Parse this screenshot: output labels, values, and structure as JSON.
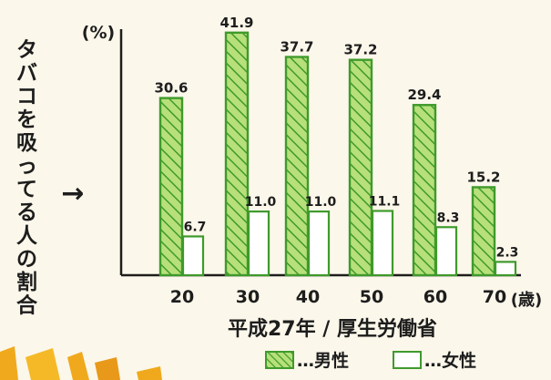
{
  "chart_data": {
    "type": "bar",
    "title": "",
    "side_label": "タバコを吸ってる人の割合",
    "arrow": "→",
    "unit_y": "(%)",
    "unit_x": "(歳)",
    "source": "平成27年 / 厚生労働省",
    "categories": [
      "20",
      "30",
      "40",
      "50",
      "60",
      "70"
    ],
    "series": [
      {
        "name": "男性",
        "values": [
          30.6,
          41.9,
          37.7,
          37.2,
          29.4,
          15.2
        ],
        "labels": [
          "30.6",
          "41.9",
          "37.7",
          "37.2",
          "29.4",
          "15.2"
        ],
        "style": "hatched",
        "color": "#3f9a2c",
        "fill": "#b7e07a"
      },
      {
        "name": "女性",
        "values": [
          6.7,
          11.0,
          11.0,
          11.1,
          8.3,
          2.3
        ],
        "labels": [
          "6.7",
          "11.0",
          "11.0",
          "11.1",
          "8.3",
          "2.3"
        ],
        "style": "outline",
        "color": "#3f9a2c",
        "fill": "#ffffff"
      }
    ],
    "legend_separator": "…",
    "ylim": [
      0,
      45
    ],
    "grid": false,
    "legend_position": "bottom-right"
  },
  "colors": {
    "axis": "#1d1d1d",
    "text": "#1d1d1d",
    "background": "#fbf7ea",
    "decoration": "#f0a91c"
  }
}
